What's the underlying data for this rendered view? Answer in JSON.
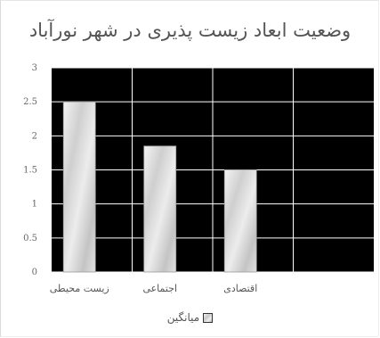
{
  "chart_data": {
    "type": "bar",
    "title": "وضعیت ابعاد زیست پذیری در شهر نورآباد",
    "categories": [
      "زیست محیطی",
      "اجتماعی",
      "اقتصادی",
      ""
    ],
    "series": [
      {
        "name": "میانگین",
        "values": [
          2.5,
          1.85,
          1.5,
          null
        ]
      }
    ],
    "ylim": [
      0,
      3
    ],
    "yticks": [
      "0",
      "0.5",
      "1",
      "1.5",
      "2",
      "2.5",
      "3"
    ],
    "grid": true,
    "plot_background": "#000000",
    "grid_color": "#ffffff",
    "bar_color": "#d9d9d9",
    "legend_position": "bottom"
  }
}
